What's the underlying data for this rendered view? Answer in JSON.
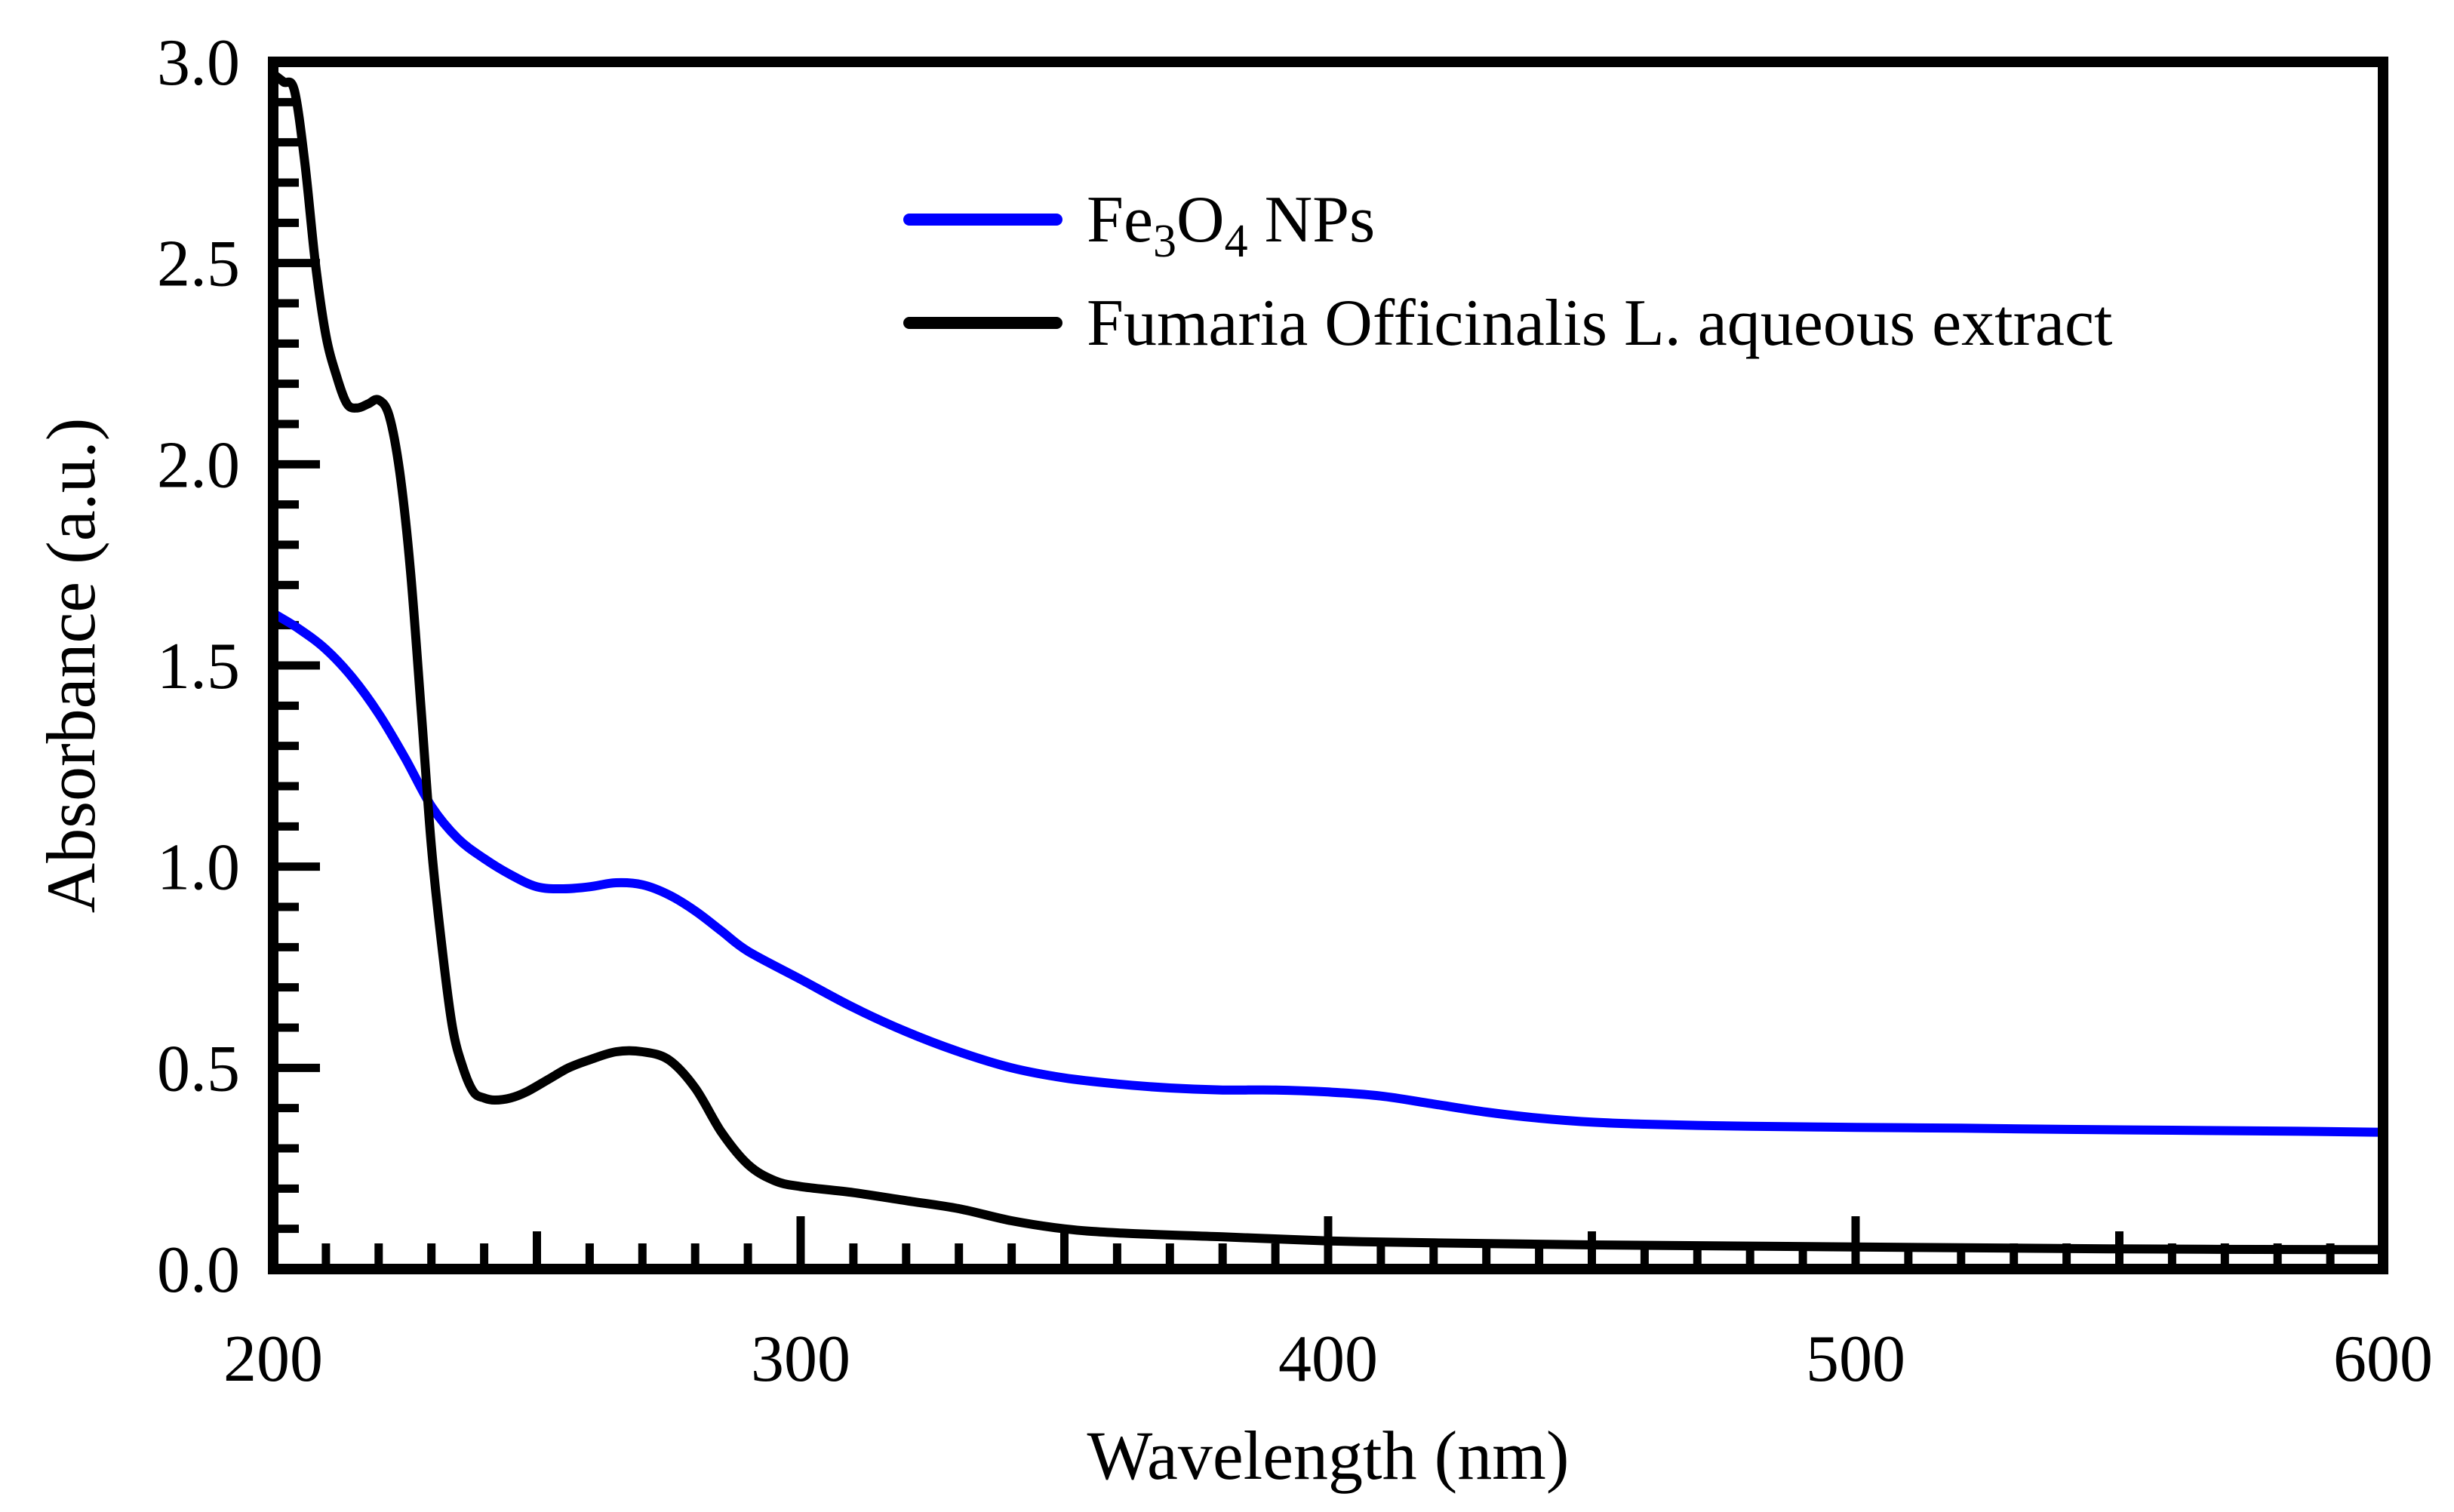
{
  "chart_data": {
    "type": "line",
    "title": "",
    "xlabel": "Wavelength (nm)",
    "ylabel": "Absorbance (a.u.)",
    "xlim": [
      200,
      600
    ],
    "ylim": [
      0.0,
      3.0
    ],
    "xticks": [
      200,
      300,
      400,
      500,
      600
    ],
    "xtick_labels": [
      "200",
      "300",
      "400",
      "500",
      "600"
    ],
    "yticks": [
      0.0,
      0.5,
      1.0,
      1.5,
      2.0,
      2.5,
      3.0
    ],
    "ytick_labels": [
      "0.0",
      "0.5",
      "1.0",
      "1.5",
      "2.0",
      "2.5",
      "3.0"
    ],
    "grid": false,
    "legend_position": "top-right",
    "series": [
      {
        "name": "Fe3O4 NPs",
        "legend_parts": [
          {
            "text": "Fe",
            "sub": false
          },
          {
            "text": "3",
            "sub": true
          },
          {
            "text": "O",
            "sub": false
          },
          {
            "text": "4",
            "sub": true
          },
          {
            "text": " NPs",
            "sub": false
          }
        ],
        "color": "#0000ff",
        "x": [
          200,
          205,
          210,
          215,
          220,
          225,
          230,
          235,
          240,
          245,
          250,
          255,
          260,
          265,
          270,
          275,
          280,
          285,
          290,
          300,
          310,
          320,
          330,
          340,
          350,
          360,
          370,
          380,
          390,
          400,
          410,
          420,
          430,
          440,
          450,
          460,
          470,
          480,
          500,
          520,
          540,
          560,
          580,
          600
        ],
        "y": [
          1.63,
          1.59,
          1.54,
          1.47,
          1.38,
          1.27,
          1.15,
          1.07,
          1.02,
          0.98,
          0.95,
          0.945,
          0.95,
          0.96,
          0.955,
          0.93,
          0.89,
          0.84,
          0.79,
          0.72,
          0.65,
          0.59,
          0.54,
          0.5,
          0.475,
          0.46,
          0.45,
          0.445,
          0.445,
          0.44,
          0.43,
          0.41,
          0.39,
          0.375,
          0.365,
          0.36,
          0.357,
          0.355,
          0.352,
          0.35,
          0.347,
          0.345,
          0.343,
          0.34
        ]
      },
      {
        "name": "Fumaria Officinalis L. aqueous extract",
        "legend_parts": [
          {
            "text": "Fumaria Officinalis L. aqueous extract",
            "sub": false
          }
        ],
        "color": "#000000",
        "x": [
          200,
          202,
          204,
          206,
          208,
          210,
          212,
          214,
          216,
          218,
          220,
          222,
          224,
          226,
          228,
          230,
          232,
          234,
          236,
          238,
          240,
          242,
          245,
          248,
          252,
          256,
          260,
          265,
          270,
          275,
          280,
          285,
          290,
          295,
          300,
          310,
          320,
          330,
          340,
          350,
          360,
          380,
          400,
          420,
          450,
          500,
          550,
          600
        ],
        "y": [
          2.97,
          2.95,
          2.93,
          2.75,
          2.5,
          2.32,
          2.22,
          2.15,
          2.14,
          2.15,
          2.16,
          2.12,
          1.98,
          1.74,
          1.4,
          1.05,
          0.8,
          0.6,
          0.5,
          0.44,
          0.425,
          0.42,
          0.425,
          0.44,
          0.47,
          0.5,
          0.52,
          0.54,
          0.54,
          0.52,
          0.45,
          0.34,
          0.26,
          0.22,
          0.205,
          0.19,
          0.17,
          0.15,
          0.12,
          0.1,
          0.09,
          0.08,
          0.07,
          0.065,
          0.06,
          0.055,
          0.05,
          0.048
        ]
      }
    ]
  }
}
